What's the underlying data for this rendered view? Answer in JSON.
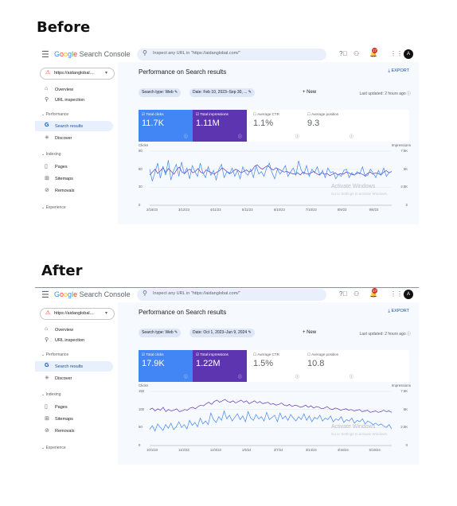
{
  "headings": {
    "before": "Before",
    "after": "After"
  },
  "app": {
    "logo_google": [
      "G",
      "o",
      "o",
      "g",
      "l",
      "e"
    ],
    "logo_rest": "Search Console",
    "search_placeholder": "Inspect any URL in \"https://aidanglobal.com/\"",
    "notification_count": "17",
    "avatar_letter": "A"
  },
  "sidebar": {
    "property": "https://aidanglobal....",
    "items": [
      {
        "label": "Overview",
        "icon": "home-icon"
      },
      {
        "label": "URL inspection",
        "icon": "search-icon"
      }
    ],
    "sections": {
      "performance": "Performance",
      "indexing": "Indexing",
      "experience": "Experience"
    },
    "perf_items": [
      {
        "label": "Search results",
        "icon": "google-g-icon"
      },
      {
        "label": "Discover",
        "icon": "discover-icon"
      }
    ],
    "index_items": [
      {
        "label": "Pages",
        "icon": "pages-icon"
      },
      {
        "label": "Sitemaps",
        "icon": "sitemap-icon"
      },
      {
        "label": "Removals",
        "icon": "removals-icon"
      }
    ]
  },
  "main": {
    "title": "Performance on Search results",
    "export": "EXPORT",
    "new_label": "New",
    "updated": "Last updated: 2 hours ago",
    "card_labels": {
      "clicks": "Total clicks",
      "impressions": "Total impressions",
      "ctr": "Average CTR",
      "position": "Average position"
    },
    "axis_left": "Clicks",
    "axis_right": "Impressions",
    "watermark": "Activate Windows",
    "watermark_sub": "Go to Settings to activate Windows."
  },
  "before": {
    "chip_type": "Search type: Web",
    "chip_date": "Date: Feb 10, 2023–Sep 30, ...",
    "clicks": "11.7K",
    "impressions": "1.11M",
    "ctr": "1.1%",
    "position": "9.3",
    "left_ticks": [
      "90",
      "60",
      "30",
      "0"
    ],
    "right_ticks": [
      "7.5K",
      "5K",
      "2.5K",
      "0"
    ],
    "x_ticks": [
      "2/16/23",
      "3/12/23",
      "4/11/23",
      "5/11/23",
      "6/10/23",
      "7/10/23",
      "8/9/23",
      "9/8/23"
    ]
  },
  "after": {
    "chip_type": "Search type: Web",
    "chip_date": "Date: Oct 1, 2023–Jun 9, 2024",
    "clicks": "17.9K",
    "impressions": "1.22M",
    "ctr": "1.5%",
    "position": "10.8",
    "left_ticks": [
      "150",
      "100",
      "50",
      "0"
    ],
    "right_ticks": [
      "7.5K",
      "5K",
      "2.5K",
      "0"
    ],
    "x_ticks": [
      "10/1/23",
      "11/2/23",
      "12/4/23",
      "1/5/24",
      "2/7/24",
      "3/14/24",
      "4/16/24",
      "5/19/24"
    ]
  },
  "colors": {
    "clicks": "#4285f4",
    "impressions": "#5e35b1",
    "active_nav": "#e8f0fe",
    "main_bg": "#f6f9fe"
  },
  "chart_data": [
    {
      "type": "line",
      "xlabel": "",
      "ylabel": "Clicks",
      "y2label": "Impressions",
      "ylim": [
        0,
        90
      ],
      "y2lim": [
        0,
        7500
      ],
      "x_ticks": [
        "2/16/23",
        "3/12/23",
        "4/11/23",
        "5/11/23",
        "6/10/23",
        "7/10/23",
        "8/9/23",
        "9/8/23"
      ],
      "series": [
        {
          "name": "Total clicks",
          "axis": "left",
          "values": [
            60,
            40,
            55,
            70,
            45,
            65,
            50,
            75,
            42,
            58,
            68,
            48,
            72,
            52,
            62,
            44,
            66,
            56,
            48,
            70,
            54,
            46,
            64,
            50,
            58,
            42,
            60,
            68,
            46,
            56,
            52,
            62,
            48,
            58,
            44,
            64,
            54,
            50,
            60,
            46,
            66,
            52,
            56,
            48,
            62,
            70,
            54,
            44,
            60,
            52,
            58,
            66,
            48,
            56,
            62,
            50,
            74,
            58,
            52,
            66,
            48,
            60,
            54,
            64,
            50,
            58,
            46,
            62,
            54,
            56,
            44,
            52,
            48,
            58,
            60,
            46,
            54,
            50,
            56,
            52,
            64,
            48,
            50,
            60,
            54,
            46,
            58,
            50,
            62,
            48,
            54,
            56
          ]
        },
        {
          "name": "Total impressions",
          "axis": "right",
          "values": [
            4200,
            4600,
            5000,
            4400,
            4800,
            5200,
            4500,
            5100,
            4700,
            4300,
            4900,
            5300,
            4600,
            4400,
            4800,
            5000,
            4500,
            4700,
            5100,
            4600,
            4400,
            4900,
            4700,
            4500,
            4300,
            4600,
            4800,
            5200,
            4900,
            4600,
            4400,
            4700,
            5000,
            4800,
            4500,
            4700,
            4900,
            4600,
            4800,
            5400,
            5600,
            5200,
            5000,
            5300,
            5500,
            5100,
            4900,
            5200,
            5000,
            4800,
            4600,
            4700,
            4500,
            4400,
            4300,
            4500,
            4200,
            4600,
            4400,
            4300,
            4500,
            4700,
            4400,
            4200,
            4500,
            4300,
            4400,
            4100,
            4300,
            4500,
            4200,
            4400,
            4300,
            4600,
            4500,
            4300,
            4200,
            4400,
            4500,
            4300,
            4100,
            4400,
            4600,
            4300,
            4500,
            4400,
            4200,
            4600,
            4800,
            4500,
            4700
          ]
        }
      ]
    },
    {
      "type": "line",
      "xlabel": "",
      "ylabel": "Clicks",
      "y2label": "Impressions",
      "ylim": [
        0,
        150
      ],
      "y2lim": [
        0,
        7500
      ],
      "x_ticks": [
        "10/1/23",
        "11/2/23",
        "12/4/23",
        "1/5/24",
        "2/7/24",
        "3/14/24",
        "4/16/24",
        "5/19/24"
      ],
      "series": [
        {
          "name": "Total clicks",
          "axis": "left",
          "values": [
            45,
            55,
            40,
            60,
            50,
            42,
            58,
            48,
            62,
            44,
            52,
            66,
            50,
            58,
            46,
            70,
            56,
            64,
            52,
            76,
            60,
            68,
            58,
            90,
            72,
            64,
            80,
            70,
            96,
            74,
            84,
            68,
            78,
            88,
            72,
            82,
            66,
            94,
            76,
            70,
            86,
            74,
            80,
            68,
            92,
            72,
            78,
            84,
            66,
            90,
            74,
            82,
            70,
            86,
            76,
            68,
            80,
            72,
            88,
            70,
            82,
            66,
            78,
            74,
            84,
            68,
            76,
            72,
            82,
            66,
            74,
            70,
            80,
            64,
            72,
            68,
            76,
            62,
            70,
            66,
            74,
            60,
            68,
            64,
            58,
            62,
            56,
            60,
            54,
            50,
            58,
            46
          ]
        },
        {
          "name": "Total impressions",
          "axis": "right",
          "values": [
            5000,
            5200,
            4800,
            5100,
            4900,
            5300,
            4700,
            5000,
            4800,
            4900,
            5100,
            4700,
            4800,
            5000,
            4900,
            5200,
            5300,
            5100,
            5400,
            5600,
            5500,
            5800,
            6000,
            5700,
            6100,
            6300,
            6000,
            6200,
            6400,
            6100,
            6000,
            6200,
            5900,
            6100,
            6300,
            6000,
            6200,
            5800,
            6000,
            6200,
            5900,
            6100,
            5800,
            5900,
            6000,
            5700,
            5800,
            5600,
            5700,
            5900,
            5600,
            5500,
            5700,
            5400,
            5600,
            5500,
            5300,
            5400,
            5600,
            5300,
            5500,
            5200,
            5400,
            5300,
            5100,
            5200,
            5400,
            5100,
            5000,
            5200,
            5100,
            4900,
            5000,
            5100,
            4900,
            5000,
            4800,
            4900,
            5000,
            4700,
            4800,
            4900,
            4600,
            4700,
            4800,
            4600,
            4700,
            4900,
            4700,
            4800,
            4600
          ]
        }
      ]
    }
  ]
}
